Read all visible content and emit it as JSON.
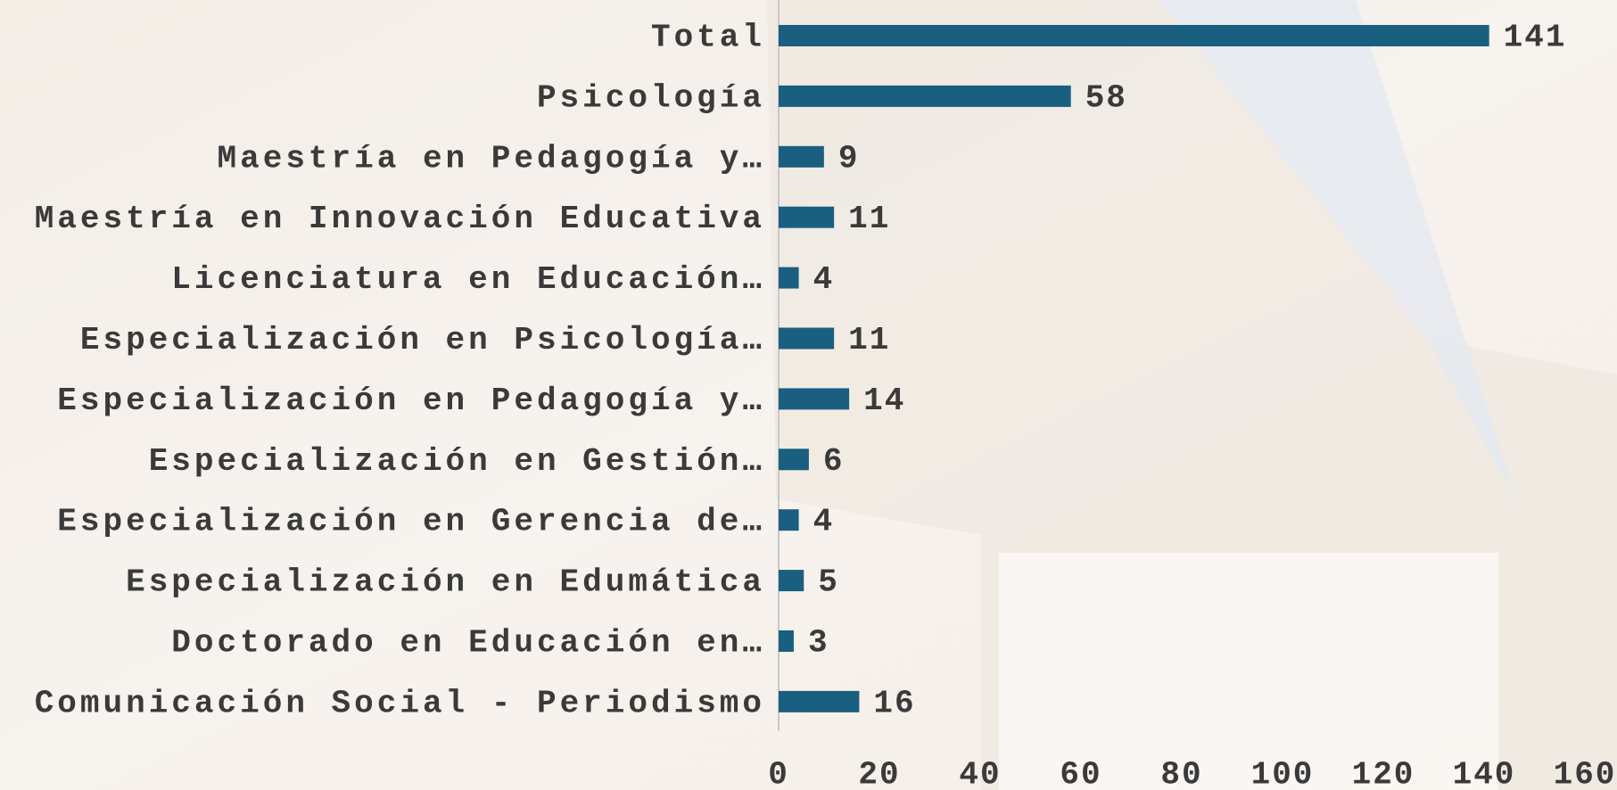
{
  "chart_data": {
    "type": "bar",
    "orientation": "horizontal",
    "categories": [
      "Total",
      "Psicología",
      "Maestría en Pedagogía y…",
      "Maestría en Innovación Educativa",
      "Licenciatura en Educación…",
      "Especialización en Psicología…",
      "Especialización en Pedagogía y…",
      "Especialización en Gestión…",
      "Especialización en Gerencia de…",
      "Especialización en Edumática",
      "Doctorado en Educación en…",
      "Comunicación Social - Periodismo"
    ],
    "values": [
      141,
      58,
      9,
      11,
      4,
      11,
      14,
      6,
      4,
      5,
      3,
      16
    ],
    "color": "#1a5f80",
    "xlim": [
      0,
      160
    ],
    "xticks": [
      0,
      20,
      40,
      60,
      80,
      100,
      120,
      140,
      160
    ],
    "grid": false
  }
}
